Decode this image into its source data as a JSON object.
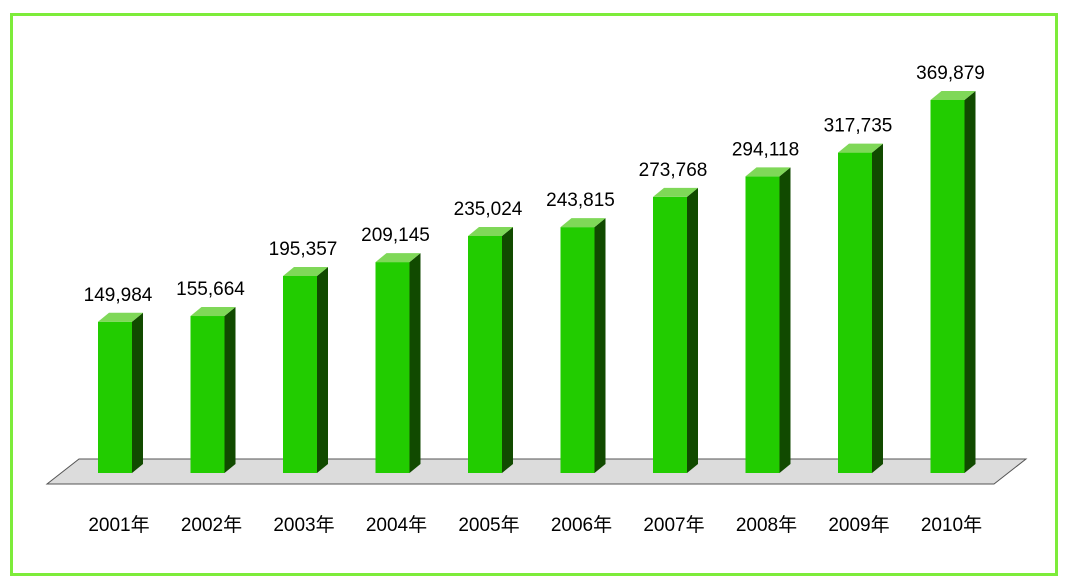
{
  "chart_data": {
    "type": "bar",
    "categories": [
      "2001年",
      "2002年",
      "2003年",
      "2004年",
      "2005年",
      "2006年",
      "2007年",
      "2008年",
      "2009年",
      "2010年"
    ],
    "series": [
      {
        "values": [
          149984,
          155664,
          195357,
          209145,
          235024,
          243815,
          273768,
          294118,
          317735,
          369879
        ]
      }
    ],
    "data_labels": [
      "149,984",
      "155,664",
      "195,357",
      "209,145",
      "235,024",
      "243,815",
      "273,768",
      "294,118",
      "317,735",
      "369,879"
    ],
    "title": "",
    "xlabel": "",
    "ylabel": "",
    "ylim": [
      0,
      369879
    ],
    "grid": false,
    "legend": "none",
    "style": "3d-column",
    "colors": {
      "bar_front": "#22cc00",
      "bar_top": "#7fd858",
      "bar_side": "#114a00",
      "floor": "#dcdcdc",
      "floor_stroke": "#555555",
      "frame_border": "#7dec3a"
    }
  }
}
